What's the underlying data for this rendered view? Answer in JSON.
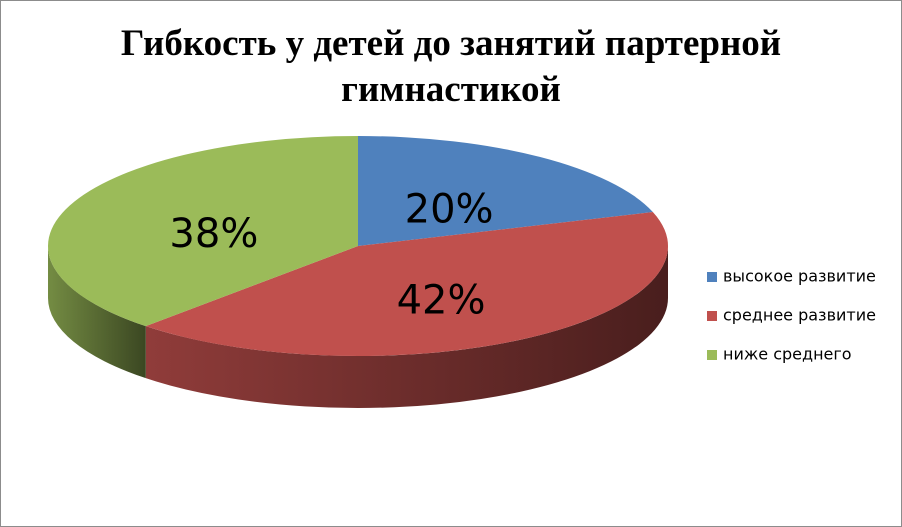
{
  "chart_data": {
    "type": "pie",
    "title": "Гибкость у детей до занятий партерной гимнастикой",
    "categories": [
      "высокое развитие",
      "среднее развитие",
      "ниже среднего"
    ],
    "values": [
      20,
      42,
      38
    ],
    "value_labels": [
      "20%",
      "42%",
      "38%"
    ],
    "colors": [
      "#4f81bd",
      "#c0504d",
      "#9bbb59"
    ],
    "legend": "right"
  }
}
